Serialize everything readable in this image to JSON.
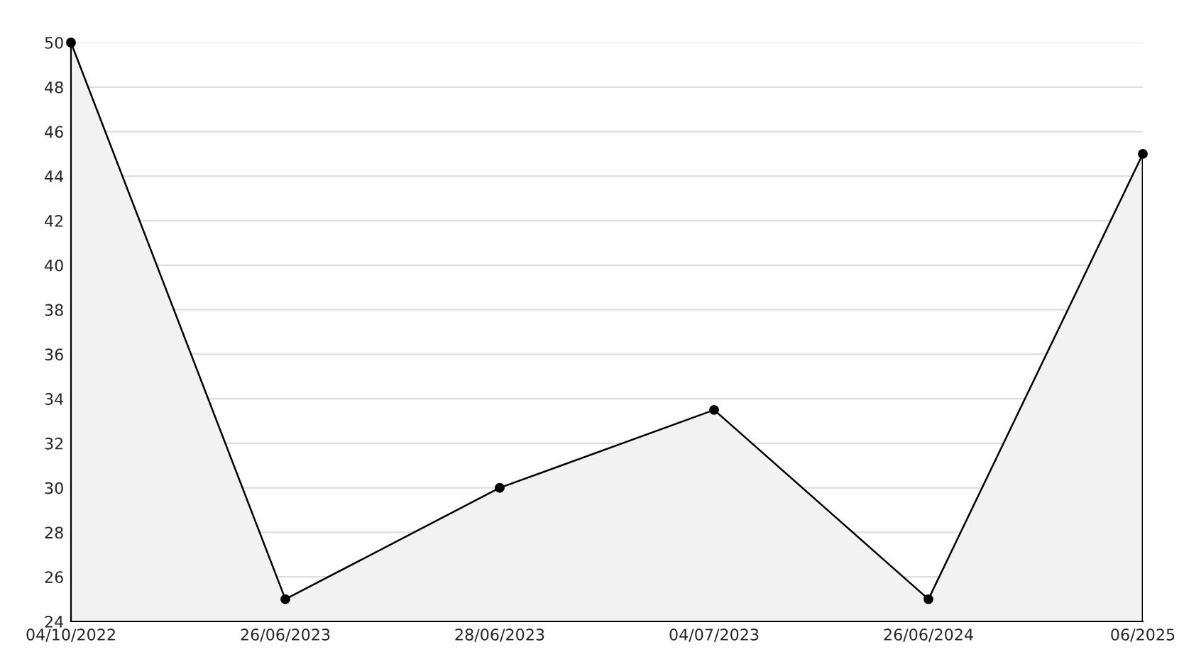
{
  "chart_data": {
    "type": "area",
    "categories": [
      "04/10/2022",
      "26/06/2023",
      "28/06/2023",
      "04/07/2023",
      "26/06/2024",
      "06/2025"
    ],
    "series": [
      {
        "color": "#000000",
        "values": [
          50,
          25,
          30,
          33.5,
          25,
          45
        ]
      }
    ],
    "ylim": [
      24,
      50
    ],
    "yticks": [
      24,
      26,
      28,
      30,
      32,
      34,
      36,
      38,
      40,
      42,
      44,
      46,
      48,
      50
    ],
    "grid": "y",
    "marker": "circle",
    "line_style": "solid",
    "legend": false
  }
}
